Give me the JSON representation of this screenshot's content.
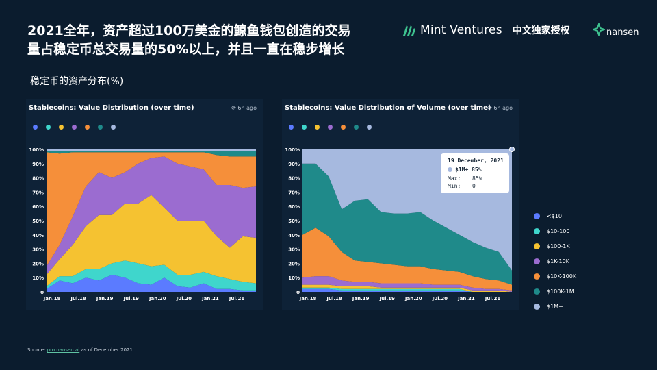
{
  "header": {
    "title_line1": "2021全年，资产超过100万美金的鲸鱼钱包创造的交易",
    "title_line2": "量占稳定币总交易量的50%以上，并且一直在稳步增长",
    "brand_name": "Mint Ventures",
    "brand_cn": "中文独家授权",
    "partner_name": "nansen",
    "subtitle": "稳定币的资产分布(%)"
  },
  "series_legend": [
    {
      "label": "<$10",
      "color": "#5b7bff"
    },
    {
      "label": "$10-100",
      "color": "#3fd6cc"
    },
    {
      "label": "$100-1K",
      "color": "#f5c231"
    },
    {
      "label": "$1K-10K",
      "color": "#9b6cd0"
    },
    {
      "label": "$10K-100K",
      "color": "#f58f3a"
    },
    {
      "label": "$100K-1M",
      "color": "#1f8a8a"
    },
    {
      "label": "$1M+",
      "color": "#a6b9df"
    }
  ],
  "tooltip": {
    "date": "19 December, 2021",
    "series": "$1M+",
    "value": "85%",
    "max_label": "Max:",
    "max_value": "85%",
    "min_label": "Min:",
    "min_value": "0"
  },
  "source": {
    "prefix": "Source:",
    "link": "pro.nansen.ai",
    "suffix": "as of December 2021"
  },
  "chart_data": [
    {
      "type": "area",
      "title": "Stablecoins: Value Distribution (over time)",
      "updated": "6h ago",
      "stacked_percent": true,
      "ylim": [
        0,
        100
      ],
      "y_ticks": [
        "0",
        "10%",
        "20%",
        "30%",
        "40%",
        "50%",
        "60%",
        "70%",
        "80%",
        "90%",
        "100%"
      ],
      "x_ticks": [
        "Jan.18",
        "Jul.18",
        "Jan.19",
        "Jul.19",
        "Jan.20",
        "Jul.20",
        "Jan.21",
        "Jul.21"
      ],
      "x": [
        "2018-01",
        "2018-04",
        "2018-07",
        "2018-10",
        "2019-01",
        "2019-04",
        "2019-07",
        "2019-10",
        "2020-01",
        "2020-04",
        "2020-07",
        "2020-10",
        "2021-01",
        "2021-04",
        "2021-07",
        "2021-10",
        "2021-12"
      ],
      "series": [
        {
          "name": "<$10",
          "values": [
            2,
            8,
            6,
            10,
            8,
            12,
            10,
            6,
            5,
            10,
            4,
            3,
            6,
            2,
            2,
            1,
            1
          ]
        },
        {
          "name": "$10-100",
          "values": [
            2,
            3,
            5,
            6,
            8,
            8,
            12,
            14,
            13,
            9,
            8,
            9,
            8,
            9,
            7,
            6,
            5
          ]
        },
        {
          "name": "$100-1K",
          "values": [
            8,
            12,
            22,
            30,
            38,
            34,
            40,
            42,
            50,
            40,
            38,
            38,
            36,
            28,
            22,
            32,
            32
          ]
        },
        {
          "name": "$1K-10K",
          "values": [
            6,
            10,
            20,
            28,
            30,
            26,
            22,
            28,
            26,
            36,
            40,
            38,
            36,
            36,
            44,
            34,
            36
          ]
        },
        {
          "name": "$10K-100K",
          "values": [
            80,
            64,
            45,
            24,
            14,
            18,
            14,
            8,
            4,
            3,
            8,
            10,
            12,
            21,
            20,
            22,
            21
          ]
        },
        {
          "name": "$100K-1M",
          "values": [
            1,
            2,
            1,
            1,
            1,
            1,
            1,
            1,
            1,
            1,
            1,
            1,
            1,
            3,
            4,
            4,
            4
          ]
        },
        {
          "name": "$1M+",
          "values": [
            1,
            1,
            1,
            1,
            1,
            1,
            1,
            1,
            1,
            1,
            1,
            1,
            1,
            1,
            1,
            1,
            1
          ]
        }
      ]
    },
    {
      "type": "area",
      "title": "Stablecoins: Value Distribution of Volume (over time)",
      "updated": "6h ago",
      "stacked_percent": true,
      "ylim": [
        0,
        100
      ],
      "y_ticks": [
        "0",
        "10%",
        "20%",
        "30%",
        "40%",
        "50%",
        "60%",
        "70%",
        "80%",
        "90%",
        "100%"
      ],
      "x_ticks": [
        "Jan.18",
        "Jul.18",
        "Jan.19",
        "Jul.19",
        "Jan.20",
        "Jul.20",
        "Jan.21",
        "Jul.21"
      ],
      "x": [
        "2018-01",
        "2018-04",
        "2018-07",
        "2018-10",
        "2019-01",
        "2019-04",
        "2019-07",
        "2019-10",
        "2020-01",
        "2020-04",
        "2020-07",
        "2020-10",
        "2021-01",
        "2021-04",
        "2021-07",
        "2021-10",
        "2021-12"
      ],
      "series": [
        {
          "name": "<$10",
          "values": [
            2,
            2,
            2,
            1,
            1,
            1,
            1,
            1,
            1,
            1,
            1,
            1,
            1,
            0,
            0,
            0,
            0
          ]
        },
        {
          "name": "$10-100",
          "values": [
            1,
            1,
            1,
            1,
            1,
            1,
            1,
            1,
            1,
            1,
            1,
            1,
            1,
            0,
            0,
            0,
            0
          ]
        },
        {
          "name": "$100-1K",
          "values": [
            2,
            2,
            2,
            2,
            2,
            2,
            1,
            1,
            1,
            1,
            1,
            1,
            1,
            1,
            1,
            1,
            0
          ]
        },
        {
          "name": "$1K-10K",
          "values": [
            5,
            6,
            6,
            4,
            3,
            3,
            3,
            3,
            3,
            3,
            2,
            2,
            2,
            2,
            1,
            1,
            1
          ]
        },
        {
          "name": "$10K-100K",
          "values": [
            30,
            34,
            28,
            20,
            15,
            14,
            14,
            13,
            12,
            12,
            11,
            10,
            9,
            8,
            7,
            6,
            4
          ]
        },
        {
          "name": "$100K-1M",
          "values": [
            50,
            45,
            42,
            30,
            42,
            44,
            36,
            36,
            37,
            38,
            34,
            30,
            26,
            24,
            22,
            20,
            10
          ]
        },
        {
          "name": "$1M+",
          "values": [
            10,
            10,
            19,
            42,
            36,
            35,
            44,
            45,
            45,
            44,
            50,
            55,
            60,
            65,
            69,
            72,
            85
          ]
        }
      ]
    }
  ]
}
